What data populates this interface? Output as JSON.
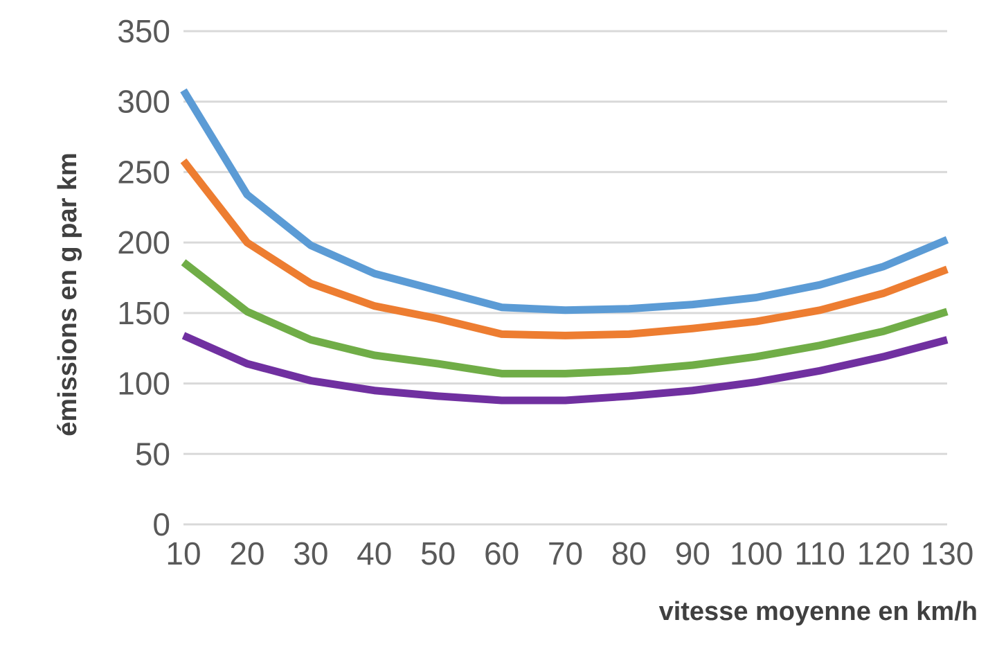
{
  "chart_data": {
    "type": "line",
    "title": "",
    "xlabel": "vitesse moyenne en km/h",
    "ylabel": "émissions en g par km",
    "x": [
      10,
      20,
      30,
      40,
      50,
      60,
      70,
      80,
      90,
      100,
      110,
      120,
      130
    ],
    "ylim": [
      0,
      350
    ],
    "yticks": [
      0,
      50,
      100,
      150,
      200,
      250,
      300,
      350
    ],
    "grid": true,
    "legend": "none",
    "series": [
      {
        "color": "#5b9bd5",
        "values": [
          308,
          234,
          198,
          178,
          166,
          154,
          152,
          153,
          156,
          161,
          170,
          183,
          202
        ]
      },
      {
        "color": "#ed7d31",
        "values": [
          258,
          200,
          171,
          155,
          146,
          135,
          134,
          135,
          139,
          144,
          152,
          164,
          181
        ]
      },
      {
        "color": "#70ad47",
        "values": [
          186,
          151,
          131,
          120,
          114,
          107,
          107,
          109,
          113,
          119,
          127,
          137,
          151
        ]
      },
      {
        "color": "#7030a0",
        "values": [
          134,
          114,
          102,
          95,
          91,
          88,
          88,
          91,
          95,
          101,
          109,
          119,
          131
        ]
      }
    ]
  }
}
